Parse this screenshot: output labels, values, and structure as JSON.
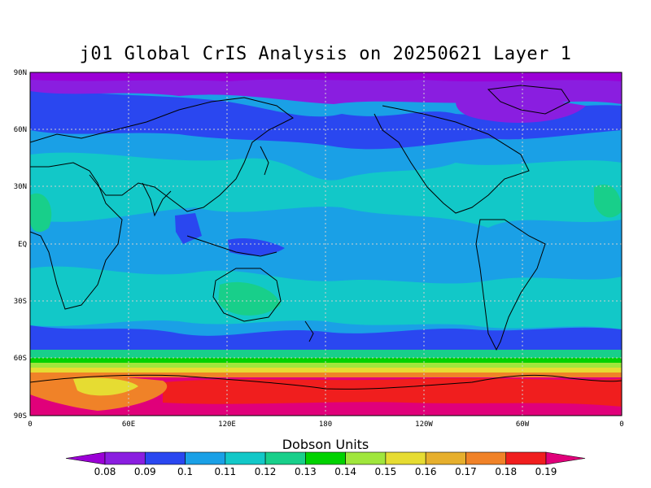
{
  "title": "j01 Global CrIS Analysis on 20250621 Layer 1",
  "lat_labels": [
    "90N",
    "60N",
    "30N",
    "EQ",
    "30S",
    "60S",
    "90S"
  ],
  "lon_labels": [
    "0",
    "60E",
    "120E",
    "180",
    "120W",
    "60W",
    "0"
  ],
  "colorbar": {
    "title": "Dobson Units",
    "levels": [
      "0.08",
      "0.09",
      "0.1",
      "0.11",
      "0.12",
      "0.13",
      "0.14",
      "0.15",
      "0.16",
      "0.17",
      "0.18",
      "0.19"
    ],
    "colors": [
      "#9b00d6",
      "#8a1ee0",
      "#2a47f0",
      "#1aa0e6",
      "#12c8c8",
      "#18cf8a",
      "#00d200",
      "#a0e63c",
      "#e6dc32",
      "#e6af2d",
      "#f08228",
      "#f01e1e",
      "#e0007a"
    ]
  },
  "map_colors": {
    "ocean_low": "#1aa0e6",
    "polar_north": "#8a1ee0",
    "blue_band": "#2a47f0",
    "cyan_band": "#12c8c8",
    "green_band": "#18cf8a",
    "antarctic": "#e0007a",
    "antarctic_hot": "#f01e1e",
    "antarctic_warm": "#f08228",
    "antarctic_yellow": "#e6dc32"
  }
}
